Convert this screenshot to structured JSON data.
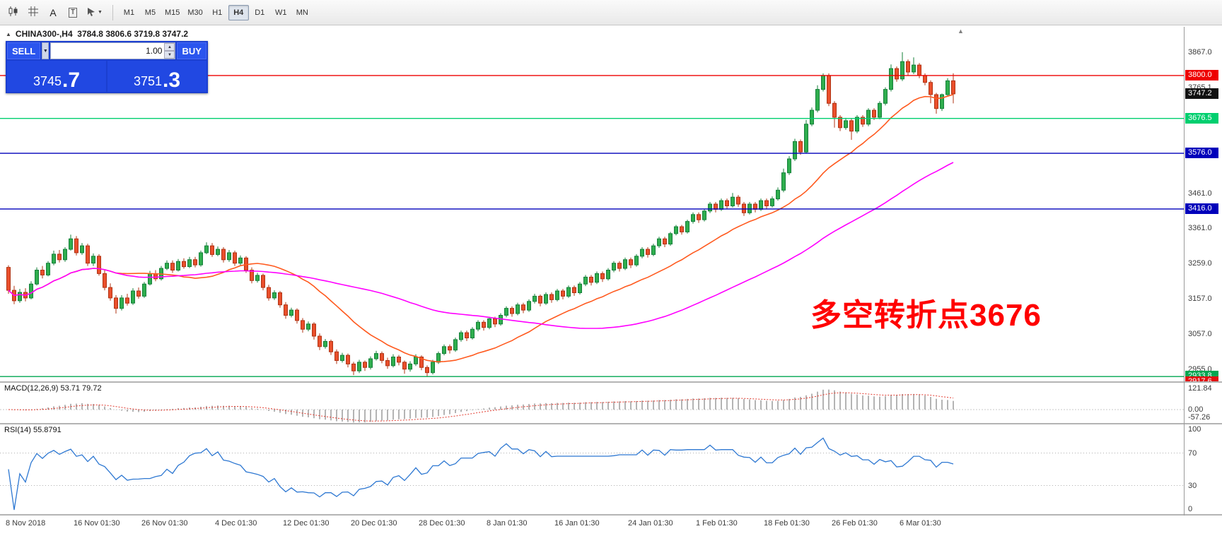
{
  "icons": {
    "caret_down": "▼",
    "spinner_up": "▲",
    "spinner_down": "▼",
    "collapse_arrow": "▲",
    "shift_marker": "▲",
    "text_tool": "A",
    "label_tool": "T"
  },
  "toolbar": {
    "timeframes": [
      {
        "label": "M1",
        "active": false
      },
      {
        "label": "M5",
        "active": false
      },
      {
        "label": "M15",
        "active": false
      },
      {
        "label": "M30",
        "active": false
      },
      {
        "label": "H1",
        "active": false
      },
      {
        "label": "H4",
        "active": true
      },
      {
        "label": "D1",
        "active": false
      },
      {
        "label": "W1",
        "active": false
      },
      {
        "label": "MN",
        "active": false
      }
    ]
  },
  "chart": {
    "symbol_line": "CHINA300-,H4  3784.8 3806.6 3719.8 3747.2",
    "trade_panel": {
      "sell_label": "SELL",
      "buy_label": "BUY",
      "volume": "1.00",
      "bid_int": "3745",
      "bid_frac": ".7",
      "ask_int": "3751",
      "ask_frac": ".3"
    },
    "annotation": {
      "text": "多空转折点3676",
      "color": "#ff0000"
    }
  },
  "macd_panel": {
    "label": "MACD(12,26,9) 53.71 79.72",
    "axis": [
      {
        "value": 121.84,
        "label": "121.84"
      },
      {
        "value": 0,
        "label": "0.00"
      },
      {
        "value": -57.26,
        "label": "-57.26"
      }
    ]
  },
  "rsi_panel": {
    "label": "RSI(14) 55.8791",
    "axis": [
      {
        "value": 100,
        "label": "100"
      },
      {
        "value": 70,
        "label": "70"
      },
      {
        "value": 30,
        "label": "30"
      },
      {
        "value": 0,
        "label": "0"
      }
    ],
    "levels": [
      70,
      30
    ]
  },
  "chart_data": {
    "type": "candlestick",
    "symbol": "CHINA300-",
    "timeframe": "H4",
    "current_ohlc": {
      "open": 3784.8,
      "high": 3806.6,
      "low": 3719.8,
      "close": 3747.2
    },
    "price_axis": {
      "min": 2920,
      "max": 3940,
      "plain_labels": [
        {
          "value": 3867.0,
          "label": "3867.0"
        },
        {
          "value": 3765.1,
          "label": "3765.1"
        },
        {
          "value": 3461.0,
          "label": "3461.0"
        },
        {
          "value": 3361.0,
          "label": "3361.0"
        },
        {
          "value": 3259.0,
          "label": "3259.0"
        },
        {
          "value": 3157.0,
          "label": "3157.0"
        },
        {
          "value": 3057.0,
          "label": "3057.0"
        },
        {
          "value": 2955.0,
          "label": "2955.0"
        }
      ]
    },
    "levels": [
      {
        "price": 3800.0,
        "label": "3800.0",
        "color": "#ee0000",
        "line": true
      },
      {
        "price": 3747.2,
        "label": "3747.2",
        "color": "#111111",
        "line": false
      },
      {
        "price": 3676.5,
        "label": "3676.5",
        "color": "#00cf6f",
        "line": true
      },
      {
        "price": 3576.0,
        "label": "3576.0",
        "color": "#0000bb",
        "line": true
      },
      {
        "price": 3416.0,
        "label": "3416.0",
        "color": "#0000bb",
        "line": true
      },
      {
        "price": 2933.8,
        "label": "2933.8",
        "color": "#00a651",
        "line": true
      },
      {
        "price": 2917.6,
        "label": "2917.6",
        "color": "#e01010",
        "line": false
      }
    ],
    "moving_averages": [
      {
        "period": 20,
        "color": "#ff5a1f"
      },
      {
        "period": 60,
        "color": "#ff00ff"
      }
    ],
    "indicators": {
      "macd": {
        "fast": 12,
        "slow": 26,
        "signal": 9
      },
      "rsi": {
        "period": 14
      }
    },
    "colors": {
      "up_fill": "#2fae4e",
      "up_stroke": "#15803a",
      "down_fill": "#ea4f2c",
      "down_stroke": "#b03414",
      "macd_hist": "#9a9a9a",
      "macd_signal": "#e23a2e",
      "rsi_line": "#2e78d2",
      "rsi_level": "#b0b0b0"
    },
    "time_ticks": [
      {
        "index": 0,
        "label": "8 Nov 2018"
      },
      {
        "index": 12,
        "label": "16 Nov 01:30"
      },
      {
        "index": 24,
        "label": "26 Nov 01:30"
      },
      {
        "index": 37,
        "label": "4 Dec 01:30"
      },
      {
        "index": 49,
        "label": "12 Dec 01:30"
      },
      {
        "index": 61,
        "label": "20 Dec 01:30"
      },
      {
        "index": 73,
        "label": "28 Dec 01:30"
      },
      {
        "index": 85,
        "label": "8 Jan 01:30"
      },
      {
        "index": 97,
        "label": "16 Jan 01:30"
      },
      {
        "index": 110,
        "label": "24 Jan 01:30"
      },
      {
        "index": 122,
        "label": "1 Feb 01:30"
      },
      {
        "index": 134,
        "label": "18 Feb 01:30"
      },
      {
        "index": 146,
        "label": "26 Feb 01:30"
      },
      {
        "index": 158,
        "label": "6 Mar 01:30"
      }
    ],
    "ohlc": [
      [
        3248,
        3254,
        3172,
        3182
      ],
      [
        3182,
        3195,
        3142,
        3152
      ],
      [
        3152,
        3186,
        3146,
        3176
      ],
      [
        3176,
        3188,
        3150,
        3160
      ],
      [
        3160,
        3208,
        3156,
        3200
      ],
      [
        3200,
        3248,
        3196,
        3240
      ],
      [
        3240,
        3252,
        3216,
        3226
      ],
      [
        3226,
        3266,
        3222,
        3260
      ],
      [
        3260,
        3296,
        3254,
        3286
      ],
      [
        3286,
        3298,
        3262,
        3270
      ],
      [
        3270,
        3306,
        3264,
        3300
      ],
      [
        3300,
        3342,
        3296,
        3330
      ],
      [
        3330,
        3338,
        3282,
        3290
      ],
      [
        3290,
        3318,
        3284,
        3310
      ],
      [
        3310,
        3316,
        3252,
        3260
      ],
      [
        3260,
        3288,
        3252,
        3280
      ],
      [
        3280,
        3286,
        3224,
        3230
      ],
      [
        3230,
        3242,
        3182,
        3190
      ],
      [
        3190,
        3202,
        3152,
        3160
      ],
      [
        3160,
        3168,
        3115,
        3130
      ],
      [
        3130,
        3168,
        3124,
        3160
      ],
      [
        3160,
        3172,
        3138,
        3145
      ],
      [
        3145,
        3188,
        3140,
        3180
      ],
      [
        3180,
        3190,
        3158,
        3165
      ],
      [
        3165,
        3206,
        3160,
        3200
      ],
      [
        3200,
        3238,
        3196,
        3230
      ],
      [
        3230,
        3240,
        3208,
        3215
      ],
      [
        3215,
        3252,
        3210,
        3245
      ],
      [
        3245,
        3268,
        3240,
        3260
      ],
      [
        3260,
        3268,
        3232,
        3240
      ],
      [
        3240,
        3272,
        3236,
        3265
      ],
      [
        3265,
        3274,
        3244,
        3250
      ],
      [
        3250,
        3278,
        3246,
        3270
      ],
      [
        3270,
        3278,
        3248,
        3255
      ],
      [
        3255,
        3296,
        3250,
        3290
      ],
      [
        3290,
        3320,
        3286,
        3310
      ],
      [
        3310,
        3318,
        3278,
        3285
      ],
      [
        3285,
        3308,
        3280,
        3300
      ],
      [
        3300,
        3306,
        3262,
        3270
      ],
      [
        3270,
        3298,
        3264,
        3290
      ],
      [
        3290,
        3296,
        3252,
        3260
      ],
      [
        3260,
        3282,
        3254,
        3275
      ],
      [
        3275,
        3280,
        3232,
        3240
      ],
      [
        3240,
        3248,
        3202,
        3210
      ],
      [
        3210,
        3232,
        3204,
        3225
      ],
      [
        3225,
        3230,
        3182,
        3190
      ],
      [
        3190,
        3198,
        3152,
        3160
      ],
      [
        3160,
        3182,
        3154,
        3175
      ],
      [
        3175,
        3180,
        3132,
        3140
      ],
      [
        3140,
        3148,
        3100,
        3110
      ],
      [
        3110,
        3132,
        3104,
        3125
      ],
      [
        3125,
        3130,
        3086,
        3095
      ],
      [
        3095,
        3102,
        3060,
        3070
      ],
      [
        3070,
        3092,
        3064,
        3085
      ],
      [
        3085,
        3090,
        3040,
        3050
      ],
      [
        3050,
        3058,
        3010,
        3020
      ],
      [
        3020,
        3042,
        3014,
        3035
      ],
      [
        3035,
        3040,
        2996,
        3005
      ],
      [
        3005,
        3012,
        2970,
        2980
      ],
      [
        2980,
        3002,
        2974,
        2995
      ],
      [
        2995,
        3000,
        2960,
        2970
      ],
      [
        2970,
        2976,
        2938,
        2950
      ],
      [
        2950,
        2982,
        2944,
        2975
      ],
      [
        2975,
        2980,
        2950,
        2960
      ],
      [
        2960,
        2992,
        2954,
        2985
      ],
      [
        2985,
        3008,
        2980,
        3000
      ],
      [
        3000,
        3006,
        2972,
        2980
      ],
      [
        2980,
        2988,
        2956,
        2965
      ],
      [
        2965,
        2998,
        2960,
        2990
      ],
      [
        2990,
        2996,
        2966,
        2975
      ],
      [
        2975,
        2980,
        2942,
        2955
      ],
      [
        2955,
        2978,
        2948,
        2970
      ],
      [
        2970,
        2998,
        2964,
        2990
      ],
      [
        2990,
        2995,
        2952,
        2960
      ],
      [
        2960,
        2966,
        2933,
        2945
      ],
      [
        2945,
        2982,
        2940,
        2975
      ],
      [
        2975,
        3006,
        2970,
        3000
      ],
      [
        3000,
        3026,
        2995,
        3020
      ],
      [
        3020,
        3026,
        3000,
        3010
      ],
      [
        3010,
        3046,
        3005,
        3040
      ],
      [
        3040,
        3066,
        3034,
        3060
      ],
      [
        3060,
        3066,
        3036,
        3045
      ],
      [
        3045,
        3076,
        3040,
        3070
      ],
      [
        3070,
        3096,
        3064,
        3090
      ],
      [
        3090,
        3096,
        3066,
        3075
      ],
      [
        3075,
        3106,
        3070,
        3100
      ],
      [
        3100,
        3106,
        3076,
        3085
      ],
      [
        3085,
        3116,
        3080,
        3110
      ],
      [
        3110,
        3136,
        3104,
        3130
      ],
      [
        3130,
        3136,
        3106,
        3115
      ],
      [
        3115,
        3146,
        3110,
        3140
      ],
      [
        3140,
        3146,
        3116,
        3125
      ],
      [
        3125,
        3156,
        3120,
        3150
      ],
      [
        3150,
        3172,
        3144,
        3165
      ],
      [
        3165,
        3170,
        3136,
        3145
      ],
      [
        3145,
        3176,
        3140,
        3170
      ],
      [
        3170,
        3176,
        3146,
        3155
      ],
      [
        3155,
        3186,
        3150,
        3180
      ],
      [
        3180,
        3186,
        3156,
        3165
      ],
      [
        3165,
        3196,
        3160,
        3190
      ],
      [
        3190,
        3196,
        3166,
        3175
      ],
      [
        3175,
        3206,
        3170,
        3200
      ],
      [
        3200,
        3226,
        3194,
        3220
      ],
      [
        3220,
        3226,
        3196,
        3205
      ],
      [
        3205,
        3236,
        3200,
        3230
      ],
      [
        3230,
        3236,
        3206,
        3215
      ],
      [
        3215,
        3246,
        3210,
        3240
      ],
      [
        3240,
        3266,
        3234,
        3260
      ],
      [
        3260,
        3266,
        3236,
        3245
      ],
      [
        3245,
        3276,
        3240,
        3270
      ],
      [
        3270,
        3276,
        3246,
        3255
      ],
      [
        3255,
        3286,
        3250,
        3280
      ],
      [
        3280,
        3306,
        3274,
        3300
      ],
      [
        3300,
        3306,
        3276,
        3285
      ],
      [
        3285,
        3316,
        3280,
        3310
      ],
      [
        3310,
        3336,
        3304,
        3330
      ],
      [
        3330,
        3336,
        3306,
        3315
      ],
      [
        3315,
        3350,
        3310,
        3345
      ],
      [
        3345,
        3370,
        3340,
        3365
      ],
      [
        3365,
        3370,
        3342,
        3350
      ],
      [
        3350,
        3385,
        3345,
        3380
      ],
      [
        3380,
        3406,
        3374,
        3400
      ],
      [
        3400,
        3406,
        3376,
        3385
      ],
      [
        3385,
        3416,
        3380,
        3410
      ],
      [
        3410,
        3436,
        3404,
        3430
      ],
      [
        3430,
        3436,
        3406,
        3415
      ],
      [
        3415,
        3446,
        3410,
        3440
      ],
      [
        3440,
        3446,
        3416,
        3425
      ],
      [
        3425,
        3462,
        3420,
        3450
      ],
      [
        3450,
        3456,
        3422,
        3430
      ],
      [
        3430,
        3436,
        3396,
        3405
      ],
      [
        3405,
        3436,
        3400,
        3430
      ],
      [
        3430,
        3436,
        3406,
        3415
      ],
      [
        3415,
        3446,
        3410,
        3440
      ],
      [
        3440,
        3446,
        3416,
        3425
      ],
      [
        3425,
        3452,
        3420,
        3445
      ],
      [
        3445,
        3478,
        3440,
        3470
      ],
      [
        3470,
        3532,
        3464,
        3520
      ],
      [
        3520,
        3568,
        3514,
        3560
      ],
      [
        3560,
        3618,
        3554,
        3610
      ],
      [
        3610,
        3616,
        3572,
        3580
      ],
      [
        3580,
        3672,
        3575,
        3660
      ],
      [
        3660,
        3708,
        3654,
        3700
      ],
      [
        3700,
        3772,
        3694,
        3760
      ],
      [
        3760,
        3806,
        3754,
        3800
      ],
      [
        3800,
        3806,
        3712,
        3720
      ],
      [
        3720,
        3726,
        3650,
        3680
      ],
      [
        3680,
        3686,
        3640,
        3650
      ],
      [
        3650,
        3678,
        3644,
        3670
      ],
      [
        3670,
        3676,
        3615,
        3640
      ],
      [
        3640,
        3686,
        3634,
        3680
      ],
      [
        3680,
        3686,
        3652,
        3660
      ],
      [
        3660,
        3706,
        3654,
        3700
      ],
      [
        3700,
        3706,
        3672,
        3680
      ],
      [
        3680,
        3726,
        3674,
        3720
      ],
      [
        3720,
        3766,
        3714,
        3760
      ],
      [
        3760,
        3832,
        3754,
        3820
      ],
      [
        3820,
        3826,
        3782,
        3790
      ],
      [
        3790,
        3867,
        3784,
        3840
      ],
      [
        3840,
        3846,
        3800,
        3810
      ],
      [
        3810,
        3852,
        3804,
        3830
      ],
      [
        3830,
        3836,
        3792,
        3800
      ],
      [
        3800,
        3806,
        3772,
        3780
      ],
      [
        3780,
        3786,
        3720,
        3745
      ],
      [
        3745,
        3750,
        3690,
        3705
      ],
      [
        3705,
        3748,
        3698,
        3745
      ],
      [
        3745,
        3792,
        3740,
        3784.8
      ],
      [
        3784.8,
        3806.6,
        3719.8,
        3747.2
      ]
    ]
  }
}
